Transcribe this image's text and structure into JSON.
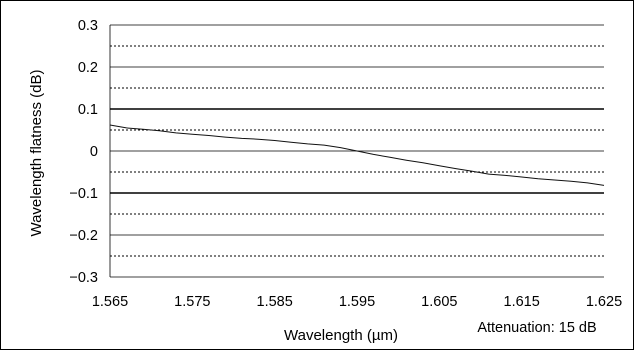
{
  "chart_data": {
    "type": "line",
    "title": "",
    "xlabel": "Wavelength (µm)",
    "ylabel": "Wavelength flatness (dB)",
    "annotation": "Attenuation: 15 dB",
    "xlim": [
      1.565,
      1.625
    ],
    "ylim": [
      -0.3,
      0.3
    ],
    "xticks": [
      "1.565",
      "1.575",
      "1.585",
      "1.595",
      "1.605",
      "1.615",
      "1.625"
    ],
    "yticks": [
      "0.3",
      "0.2",
      "0.1",
      "0",
      "−0.1",
      "−0.2",
      "−0.3"
    ],
    "grid": {
      "solid_lines_at": [
        0.3,
        0.2,
        0.1,
        0,
        -0.1,
        -0.2,
        -0.3
      ],
      "dotted_lines_at": [
        0.25,
        0.15,
        0.05,
        -0.05,
        -0.15,
        -0.25
      ],
      "bold_lines_at": [
        0.1,
        -0.1
      ]
    },
    "legend": "none",
    "series": [
      {
        "x": [
          1.565,
          1.567,
          1.569,
          1.571,
          1.573,
          1.575,
          1.577,
          1.579,
          1.581,
          1.583,
          1.585,
          1.587,
          1.589,
          1.591,
          1.593,
          1.595,
          1.597,
          1.599,
          1.601,
          1.603,
          1.605,
          1.607,
          1.609,
          1.611,
          1.613,
          1.615,
          1.617,
          1.619,
          1.621,
          1.623,
          1.625
        ],
        "values": [
          0.062,
          0.055,
          0.052,
          0.048,
          0.043,
          0.04,
          0.037,
          0.033,
          0.03,
          0.028,
          0.025,
          0.021,
          0.017,
          0.014,
          0.008,
          0.0,
          -0.008,
          -0.015,
          -0.022,
          -0.028,
          -0.035,
          -0.042,
          -0.048,
          -0.055,
          -0.058,
          -0.062,
          -0.066,
          -0.069,
          -0.072,
          -0.076,
          -0.082
        ]
      }
    ]
  }
}
